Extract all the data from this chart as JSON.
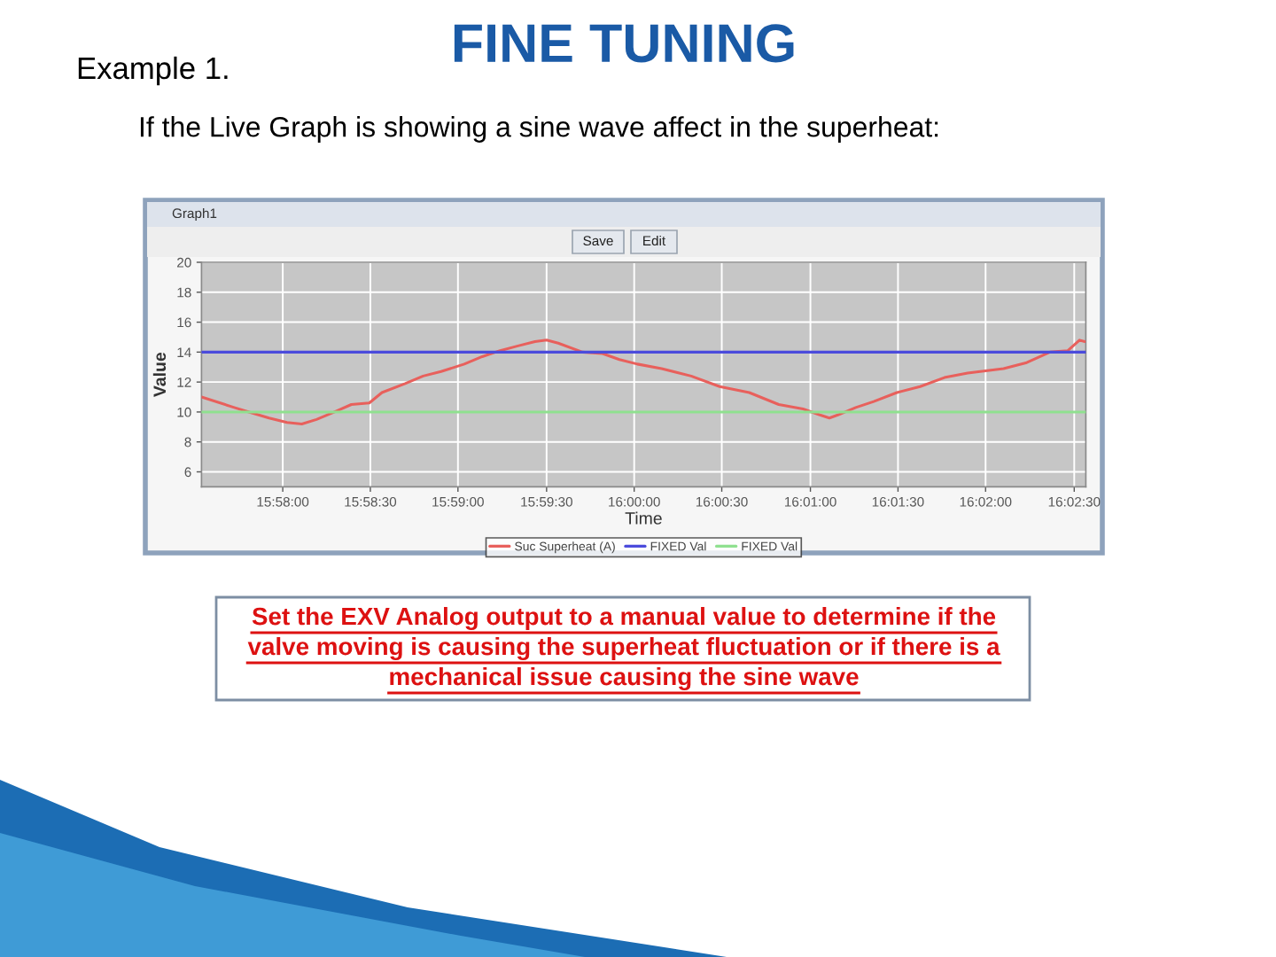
{
  "chart_data": {
    "type": "line",
    "title": "FINE TUNING",
    "subtitle": "If the Live Graph is showing a sine wave affect in the superheat:",
    "xlabel": "Time",
    "ylabel": "Value",
    "annotations": [
      "Example 1.",
      "Graph1",
      "Save",
      "Edit",
      "Set the EXV Analog output to a manual value to determine if the\nvalve moving is causing the superheat fluctuation or if there is a\nmechanical issue causing the sine wave"
    ],
    "series": [
      {
        "name": "Suc Superheat (A)",
        "color": "#e8605c",
        "x": [
          15.959,
          15.9621,
          15.9635,
          15.9654,
          15.9671,
          15.9685,
          15.9699,
          15.9716,
          15.9732,
          15.9749,
          15.9761,
          15.9783,
          15.98,
          15.9817,
          15.9839,
          15.9856,
          15.9873,
          15.9889,
          15.9906,
          15.9917,
          15.9928,
          15.9951,
          15.997,
          15.9986,
          16.0003,
          16.0026,
          16.0054,
          16.0081,
          16.0109,
          16.0137,
          16.016,
          16.0176,
          16.0185,
          16.0193,
          16.021,
          16.0227,
          16.0249,
          16.0271,
          16.0294,
          16.0316,
          16.035,
          16.0372,
          16.0394,
          16.0411,
          16.0422,
          16.0427
        ],
        "values": [
          11.0,
          10.3,
          10.0,
          9.6,
          9.3,
          9.2,
          9.5,
          10.0,
          10.5,
          10.6,
          11.3,
          11.9,
          12.4,
          12.7,
          13.2,
          13.7,
          14.1,
          14.4,
          14.7,
          14.8,
          14.6,
          14.0,
          13.9,
          13.5,
          13.2,
          12.9,
          12.4,
          11.7,
          11.3,
          10.5,
          10.2,
          9.8,
          9.6,
          9.8,
          10.3,
          10.7,
          11.3,
          11.7,
          12.3,
          12.6,
          12.9,
          13.3,
          14.0,
          14.1,
          14.8,
          14.7
        ]
      },
      {
        "name": "FIXED Val",
        "color": "#4b4bdc",
        "x": [
          15.959,
          16.0428
        ],
        "values": [
          14,
          14
        ]
      },
      {
        "name": "FIXED Val",
        "color": "#8fe08f",
        "x": [
          15.959,
          16.0428
        ],
        "values": [
          10,
          10
        ]
      }
    ],
    "xlim": [
      15.959,
      16.0428
    ],
    "xticks": [
      {
        "value": 15.9667,
        "label": "15:58:00"
      },
      {
        "value": 15.975,
        "label": "15:58:30"
      },
      {
        "value": 15.9833,
        "label": "15:59:00"
      },
      {
        "value": 15.9917,
        "label": "15:59:30"
      },
      {
        "value": 16.0,
        "label": "16:00:00"
      },
      {
        "value": 16.0083,
        "label": "16:00:30"
      },
      {
        "value": 16.0167,
        "label": "16:01:00"
      },
      {
        "value": 16.025,
        "label": "16:01:30"
      },
      {
        "value": 16.0333,
        "label": "16:02:00"
      },
      {
        "value": 16.0417,
        "label": "16:02:30"
      }
    ],
    "ylim": [
      5,
      20
    ],
    "yticks": [
      6,
      8,
      10,
      12,
      14,
      16,
      18,
      20
    ],
    "grid": true,
    "legend": "bottom",
    "line_style": "solid"
  }
}
